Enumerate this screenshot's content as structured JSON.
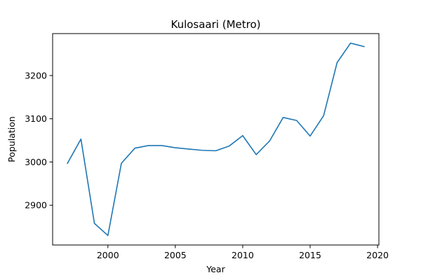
{
  "chart_data": {
    "type": "line",
    "title": "Kulosaari (Metro)",
    "xlabel": "Year",
    "ylabel": "Population",
    "xlim": [
      1995.9,
      2020.1
    ],
    "ylim": [
      2808,
      3297
    ],
    "x_ticks": [
      2000,
      2005,
      2010,
      2015,
      2020
    ],
    "y_ticks": [
      2900,
      3000,
      3100,
      3200
    ],
    "grid": false,
    "line_color": "#1f77b4",
    "series": [
      {
        "x": [
          1997,
          1998,
          1999,
          2000,
          2001,
          2002,
          2003,
          2004,
          2005,
          2006,
          2007,
          2008,
          2009,
          2010,
          2011,
          2012,
          2013,
          2014,
          2015,
          2016,
          2017,
          2018,
          2019
        ],
        "values": [
          2997,
          3053,
          2858,
          2830,
          2997,
          3032,
          3038,
          3038,
          3033,
          3030,
          3027,
          3026,
          3037,
          3061,
          3017,
          3049,
          3103,
          3096,
          3060,
          3107,
          3230,
          3275,
          3267
        ]
      }
    ]
  }
}
